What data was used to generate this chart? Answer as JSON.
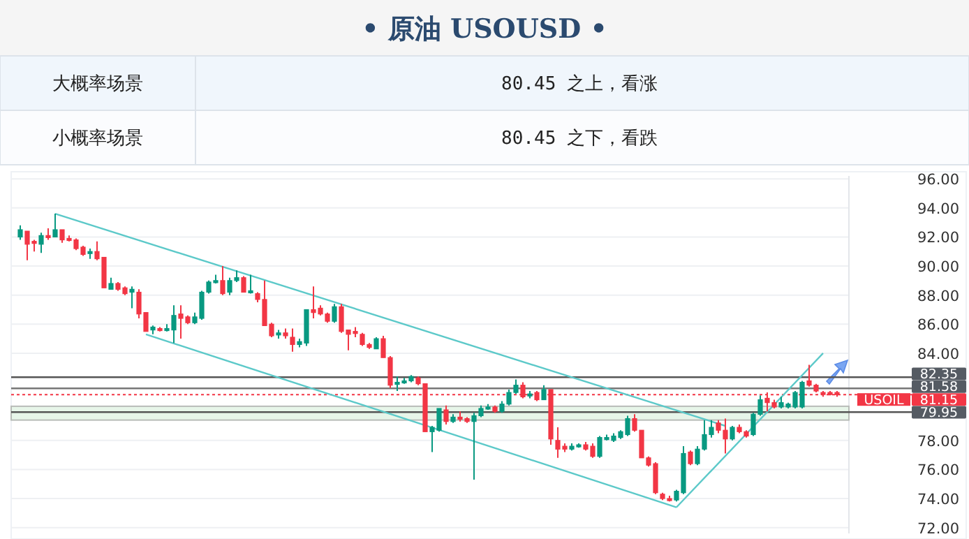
{
  "chart_data": {
    "type": "candlestick",
    "title": "• 原油 USOUSD •",
    "annotations": [
      "大概率场景",
      "80.45 之上，看涨",
      "小概率场景",
      "80.45 之下，看跌",
      "USOIL"
    ],
    "categories": [
      null,
      null,
      null,
      null,
      null,
      null,
      null,
      null,
      null,
      null,
      null,
      null,
      null,
      null,
      null,
      null,
      null,
      null,
      null,
      null,
      null,
      null,
      null,
      null,
      null,
      null,
      null,
      null,
      null,
      null,
      null,
      null,
      null,
      null,
      null,
      null,
      null,
      null,
      null,
      null,
      null,
      null,
      null,
      null,
      null,
      null,
      null,
      null,
      null,
      null,
      null,
      null,
      null,
      null,
      null,
      null,
      null,
      null,
      null,
      null,
      null,
      null,
      null,
      null,
      null,
      null,
      null,
      null,
      null,
      null,
      null,
      null,
      null,
      null,
      null,
      null,
      null,
      null,
      null,
      null,
      null,
      null,
      null,
      null,
      null,
      null,
      null,
      null,
      null,
      null,
      null,
      null,
      null,
      null,
      null,
      null,
      null,
      null,
      null,
      null,
      null,
      null,
      null,
      null,
      null,
      null,
      null,
      null,
      null,
      null,
      null,
      null,
      null,
      null,
      null,
      null,
      null,
      null
    ],
    "ohlc": [
      [
        92.0,
        92.8,
        91.8,
        92.5
      ],
      [
        92.4,
        92.4,
        90.4,
        91.5
      ],
      [
        91.7,
        91.8,
        91.0,
        91.6
      ],
      [
        91.5,
        92.3,
        90.9,
        92.1
      ],
      [
        92.1,
        92.6,
        91.8,
        92.0
      ],
      [
        92.0,
        93.6,
        92.0,
        92.5
      ],
      [
        92.5,
        92.5,
        91.6,
        91.8
      ],
      [
        91.9,
        92.1,
        91.7,
        91.8
      ],
      [
        91.8,
        91.9,
        91.1,
        91.2
      ],
      [
        91.3,
        91.4,
        90.7,
        90.8
      ],
      [
        90.9,
        91.2,
        90.5,
        91.0
      ],
      [
        91.0,
        91.7,
        90.4,
        90.5
      ],
      [
        90.6,
        90.6,
        88.5,
        88.5
      ],
      [
        88.4,
        89.2,
        88.4,
        88.8
      ],
      [
        88.8,
        88.9,
        88.3,
        88.4
      ],
      [
        88.5,
        88.6,
        88.0,
        88.1
      ],
      [
        88.2,
        88.6,
        87.1,
        88.4
      ],
      [
        88.2,
        88.4,
        86.4,
        86.7
      ],
      [
        86.8,
        86.8,
        85.5,
        85.5
      ],
      [
        85.6,
        85.9,
        85.3,
        85.8
      ],
      [
        85.7,
        85.8,
        85.5,
        85.6
      ],
      [
        85.6,
        86.0,
        85.5,
        85.7
      ],
      [
        85.6,
        87.3,
        84.7,
        86.6
      ],
      [
        86.7,
        87.3,
        85.0,
        86.4
      ],
      [
        86.5,
        86.6,
        86.0,
        86.1
      ],
      [
        86.1,
        86.8,
        86.0,
        86.5
      ],
      [
        86.4,
        88.3,
        86.3,
        88.2
      ],
      [
        88.2,
        89.0,
        88.1,
        88.9
      ],
      [
        88.9,
        89.4,
        88.8,
        89.0
      ],
      [
        89.0,
        90.0,
        88.0,
        88.1
      ],
      [
        88.2,
        89.2,
        88.0,
        89.0
      ],
      [
        89.0,
        89.7,
        88.9,
        89.2
      ],
      [
        89.2,
        89.3,
        88.2,
        88.2
      ],
      [
        88.2,
        89.4,
        88.1,
        88.3
      ],
      [
        88.1,
        88.2,
        87.5,
        87.7
      ],
      [
        87.7,
        89.0,
        85.9,
        85.9
      ],
      [
        86.0,
        86.1,
        85.1,
        85.2
      ],
      [
        85.3,
        85.6,
        85.0,
        85.4
      ],
      [
        85.4,
        85.7,
        85.0,
        85.2
      ],
      [
        85.1,
        85.7,
        84.1,
        84.6
      ],
      [
        84.6,
        85.0,
        84.4,
        84.8
      ],
      [
        84.7,
        87.0,
        84.5,
        87.0
      ],
      [
        87.0,
        88.6,
        86.4,
        86.8
      ],
      [
        87.1,
        87.3,
        86.6,
        86.7
      ],
      [
        86.7,
        86.8,
        86.1,
        86.2
      ],
      [
        86.2,
        87.4,
        86.1,
        87.2
      ],
      [
        87.2,
        87.4,
        85.4,
        85.5
      ],
      [
        85.6,
        85.6,
        84.2,
        85.3
      ],
      [
        85.5,
        85.8,
        85.1,
        85.4
      ],
      [
        85.3,
        85.4,
        84.5,
        84.6
      ],
      [
        84.6,
        84.7,
        84.3,
        84.4
      ],
      [
        84.3,
        85.1,
        84.3,
        85.0
      ],
      [
        85.0,
        85.2,
        83.7,
        83.7
      ],
      [
        83.7,
        83.8,
        81.6,
        81.8
      ],
      [
        81.9,
        82.4,
        81.4,
        82.0
      ],
      [
        82.0,
        82.3,
        81.9,
        82.1
      ],
      [
        82.1,
        82.5,
        82.0,
        82.4
      ],
      [
        82.3,
        82.4,
        81.8,
        81.9
      ],
      [
        81.9,
        81.9,
        78.6,
        78.6
      ],
      [
        78.6,
        79.0,
        77.2,
        78.9
      ],
      [
        78.7,
        80.2,
        78.6,
        80.2
      ],
      [
        80.1,
        80.4,
        79.1,
        79.3
      ],
      [
        79.3,
        79.8,
        79.2,
        79.6
      ],
      [
        79.6,
        80.0,
        79.3,
        79.5
      ],
      [
        79.5,
        79.6,
        79.2,
        79.3
      ],
      [
        79.3,
        79.9,
        75.3,
        79.7
      ],
      [
        79.7,
        80.4,
        79.6,
        80.2
      ],
      [
        80.2,
        80.5,
        80.1,
        80.3
      ],
      [
        80.3,
        80.4,
        79.9,
        80.0
      ],
      [
        80.0,
        80.7,
        79.9,
        80.5
      ],
      [
        80.5,
        81.5,
        80.4,
        81.3
      ],
      [
        81.3,
        82.2,
        81.2,
        81.8
      ],
      [
        81.8,
        82.0,
        80.9,
        81.0
      ],
      [
        81.1,
        81.4,
        80.9,
        81.2
      ],
      [
        81.3,
        81.4,
        80.7,
        80.8
      ],
      [
        80.8,
        81.8,
        80.8,
        81.5
      ],
      [
        81.5,
        81.5,
        77.7,
        78.1
      ],
      [
        78.0,
        78.9,
        76.8,
        77.4
      ],
      [
        77.6,
        77.8,
        77.2,
        77.4
      ],
      [
        77.4,
        77.8,
        77.3,
        77.6
      ],
      [
        77.6,
        77.8,
        77.5,
        77.7
      ],
      [
        77.7,
        77.9,
        77.3,
        77.4
      ],
      [
        77.6,
        77.8,
        76.8,
        76.9
      ],
      [
        76.9,
        78.3,
        76.8,
        78.2
      ],
      [
        78.1,
        78.4,
        78.0,
        78.2
      ],
      [
        78.0,
        78.5,
        77.9,
        78.3
      ],
      [
        78.2,
        78.7,
        78.1,
        78.6
      ],
      [
        78.4,
        79.7,
        78.3,
        79.5
      ],
      [
        79.5,
        79.8,
        78.6,
        78.7
      ],
      [
        78.7,
        78.7,
        76.8,
        76.8
      ],
      [
        76.8,
        76.9,
        76.2,
        76.3
      ],
      [
        76.4,
        76.5,
        74.3,
        74.4
      ],
      [
        74.3,
        74.4,
        73.9,
        74.0
      ],
      [
        74.0,
        74.2,
        73.8,
        73.95
      ],
      [
        73.9,
        74.6,
        73.8,
        74.5
      ],
      [
        74.4,
        77.6,
        74.3,
        77.1
      ],
      [
        77.2,
        77.3,
        76.3,
        76.4
      ],
      [
        76.4,
        77.6,
        76.3,
        77.4
      ],
      [
        77.4,
        79.4,
        77.3,
        78.4
      ],
      [
        78.4,
        79.4,
        78.2,
        78.9
      ],
      [
        79.2,
        79.4,
        78.5,
        78.7
      ],
      [
        78.7,
        79.5,
        77.1,
        78.1
      ],
      [
        78.1,
        79.0,
        78.0,
        78.9
      ],
      [
        78.9,
        79.1,
        78.5,
        78.6
      ],
      [
        78.6,
        78.7,
        78.2,
        78.3
      ],
      [
        78.4,
        79.9,
        78.3,
        79.8
      ],
      [
        79.8,
        81.1,
        79.7,
        80.8
      ],
      [
        80.9,
        81.3,
        80.0,
        80.6
      ],
      [
        80.6,
        80.8,
        80.2,
        80.3
      ],
      [
        80.3,
        81.0,
        80.2,
        80.6
      ],
      [
        80.3,
        80.6,
        80.2,
        80.5
      ],
      [
        80.3,
        81.4,
        80.2,
        81.3
      ],
      [
        80.3,
        82.1,
        80.2,
        82.0
      ],
      [
        82.1,
        83.2,
        81.7,
        81.8
      ],
      [
        81.8,
        81.9,
        81.3,
        81.4
      ],
      [
        81.3,
        81.4,
        81.0,
        81.2
      ],
      [
        81.3,
        81.4,
        81.1,
        81.2
      ],
      [
        81.3,
        81.4,
        81.0,
        81.15
      ]
    ],
    "series": [
      {
        "type": "line",
        "color": "#5cc9c9",
        "values": [
          null,
          null,
          null,
          null,
          null,
          93.6,
          null,
          null,
          null,
          null,
          null,
          null,
          null,
          null,
          null,
          null,
          null,
          null,
          null,
          null,
          null,
          null,
          null,
          null,
          null,
          null,
          null,
          null,
          null,
          null,
          null,
          null,
          null,
          null,
          null,
          null,
          null,
          null,
          null,
          null,
          null,
          null,
          null,
          null,
          null,
          null,
          null,
          null,
          null,
          null,
          null,
          null,
          null,
          null,
          null,
          null,
          null,
          null,
          null,
          null,
          null,
          null,
          null,
          null,
          null,
          null,
          null,
          null,
          null,
          null,
          null,
          null,
          null,
          null,
          null,
          null,
          null,
          null,
          null,
          null,
          null,
          null,
          null,
          null,
          null,
          null,
          null,
          null,
          null,
          null,
          null,
          null,
          null,
          null,
          null,
          null,
          null,
          null,
          null,
          null,
          null,
          79.0,
          null,
          null,
          null,
          null,
          null,
          null,
          null,
          null,
          null,
          null,
          null,
          null,
          null,
          null,
          null,
          null
        ]
      },
      {
        "type": "line",
        "color": "#5cc9c9",
        "values": [
          null,
          null,
          null,
          null,
          null,
          null,
          null,
          null,
          null,
          null,
          null,
          null,
          null,
          null,
          null,
          null,
          null,
          null,
          85.3,
          null,
          null,
          null,
          null,
          null,
          null,
          null,
          null,
          null,
          null,
          null,
          null,
          null,
          null,
          null,
          null,
          null,
          null,
          null,
          null,
          null,
          null,
          null,
          null,
          null,
          null,
          null,
          null,
          null,
          null,
          null,
          null,
          null,
          null,
          null,
          null,
          null,
          null,
          null,
          null,
          null,
          null,
          null,
          null,
          null,
          null,
          null,
          null,
          null,
          null,
          null,
          null,
          null,
          null,
          null,
          null,
          null,
          null,
          null,
          null,
          null,
          null,
          null,
          null,
          null,
          null,
          null,
          null,
          null,
          null,
          null,
          null,
          null,
          null,
          null,
          73.4,
          null,
          null,
          null,
          null,
          null,
          null,
          null,
          null,
          null,
          null,
          null,
          null,
          null,
          null,
          null,
          null,
          null,
          null,
          null,
          null,
          null,
          null,
          null
        ]
      },
      {
        "type": "line",
        "color": "#5cc9c9",
        "values": [
          null,
          null,
          null,
          null,
          null,
          null,
          null,
          null,
          null,
          null,
          null,
          null,
          null,
          null,
          null,
          null,
          null,
          null,
          null,
          null,
          null,
          null,
          null,
          null,
          null,
          null,
          null,
          null,
          null,
          null,
          null,
          null,
          null,
          null,
          null,
          null,
          null,
          null,
          null,
          null,
          null,
          null,
          null,
          null,
          null,
          null,
          null,
          null,
          null,
          null,
          null,
          null,
          null,
          null,
          null,
          null,
          null,
          null,
          null,
          null,
          null,
          null,
          null,
          null,
          null,
          null,
          null,
          null,
          null,
          null,
          null,
          null,
          null,
          null,
          null,
          null,
          null,
          null,
          null,
          null,
          null,
          null,
          null,
          null,
          null,
          null,
          null,
          null,
          null,
          null,
          null,
          null,
          null,
          null,
          73.4,
          null,
          null,
          null,
          null,
          null,
          null,
          null,
          null,
          null,
          null,
          null,
          null,
          null,
          null,
          null,
          null,
          null,
          null,
          null,
          null,
          84.0,
          null,
          null
        ]
      }
    ],
    "ylim": [
      71.6,
      96.2
    ],
    "yticks": [
      {
        "value": 72,
        "label": "72.00"
      },
      {
        "value": 74,
        "label": "74.00"
      },
      {
        "value": 76,
        "label": "76.00"
      },
      {
        "value": 78,
        "label": "78.00"
      },
      {
        "value": 84,
        "label": "84.00"
      },
      {
        "value": 86,
        "label": "86.00"
      },
      {
        "value": 88,
        "label": "88.00"
      },
      {
        "value": 90,
        "label": "90.00"
      },
      {
        "value": 92,
        "label": "92.00"
      },
      {
        "value": 94,
        "label": "94.00"
      },
      {
        "value": 96,
        "label": "96.00"
      }
    ],
    "grid": "y",
    "ref_lines": [
      {
        "axis": "y",
        "value": 82.35,
        "label": "82.35",
        "color": "#555555",
        "line_style": "solid"
      },
      {
        "axis": "y",
        "value": 81.58,
        "label": "81.58",
        "color": "#777777",
        "line_style": "solid"
      },
      {
        "axis": "y",
        "value": 81.15,
        "label": "81.15",
        "color": "#f23645",
        "line_style": "dotted"
      },
      {
        "axis": "y",
        "value": 79.95,
        "label": "79.95",
        "color": "#555555",
        "line_style": "solid"
      }
    ],
    "bands": [
      {
        "axis": "y",
        "from": 79.4,
        "to": 80.35,
        "color": "#dff2e1"
      }
    ]
  }
}
